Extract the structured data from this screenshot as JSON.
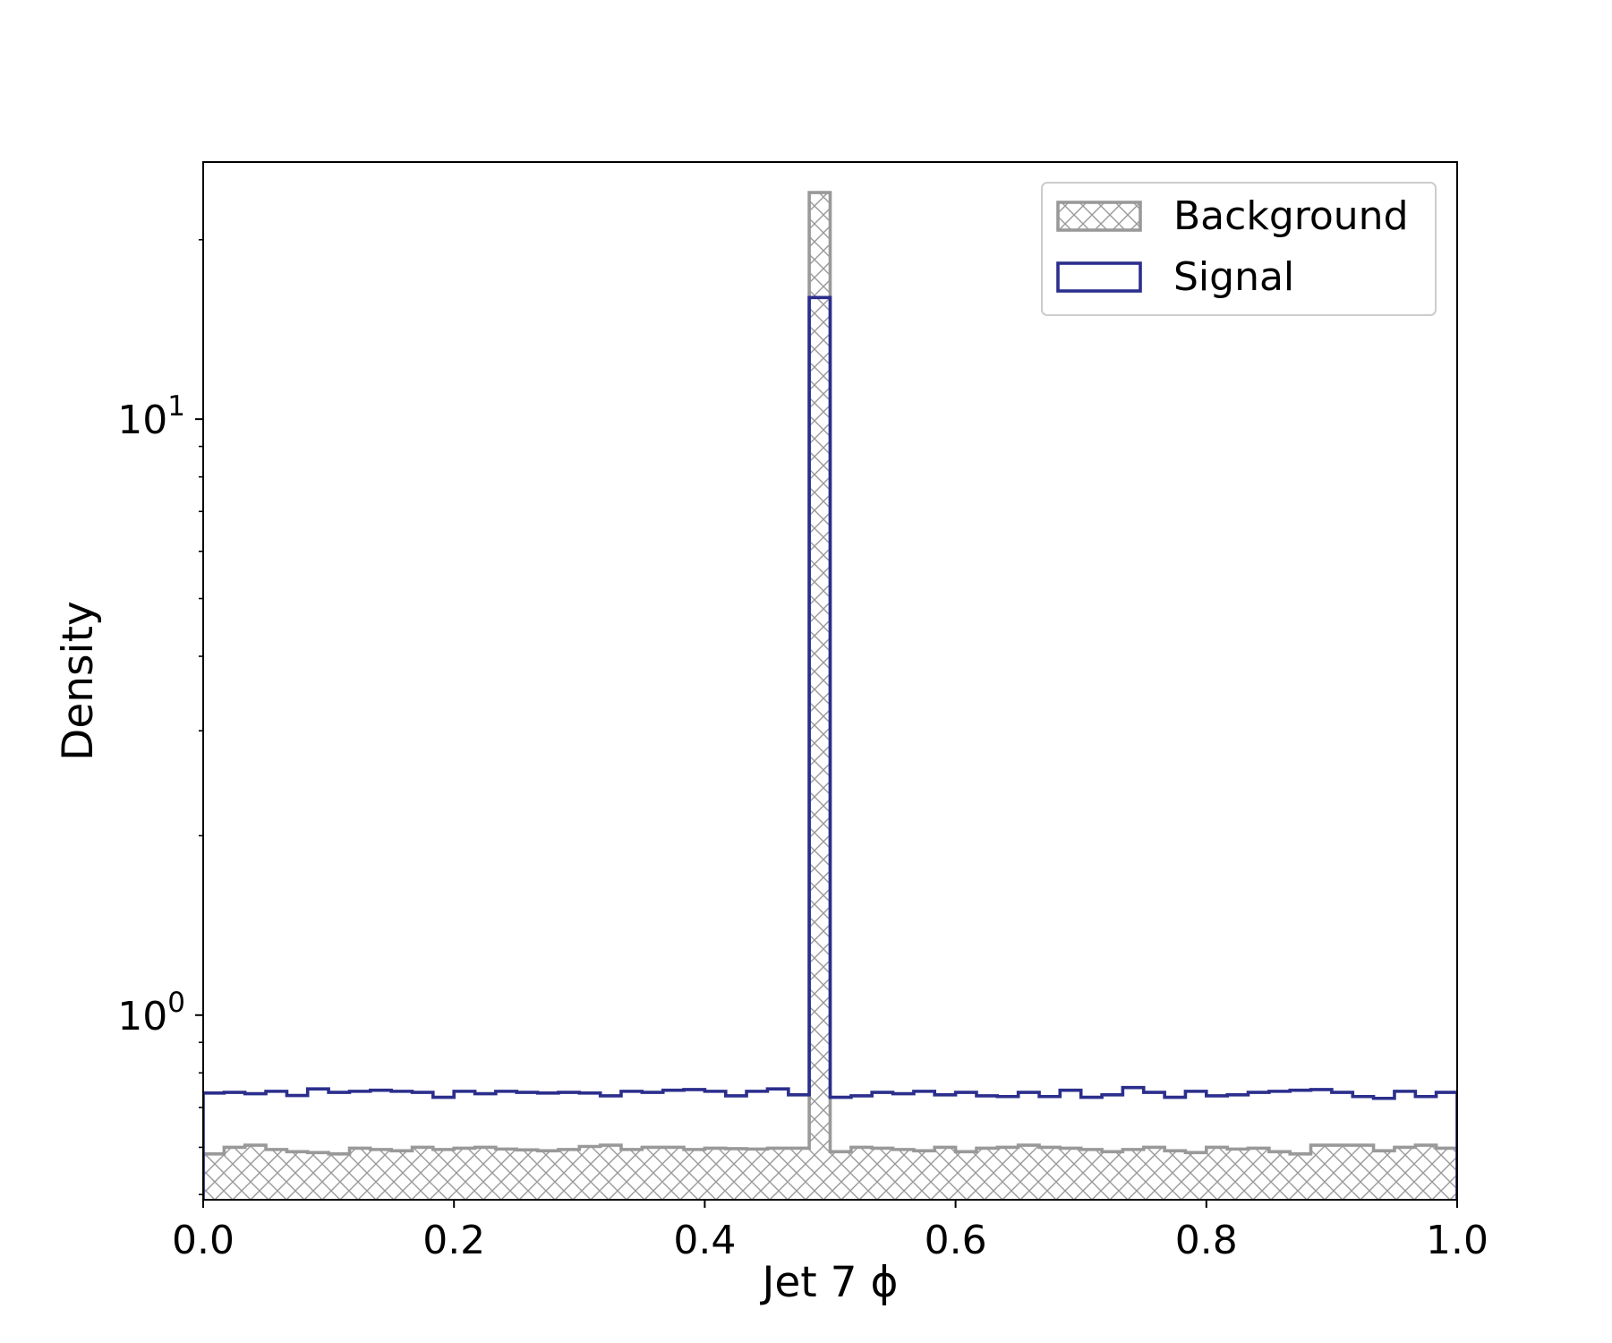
{
  "chart_data": {
    "type": "histogram",
    "xlabel": "Jet 7 ϕ",
    "ylabel": "Density",
    "xlim": [
      0.0,
      1.0
    ],
    "ylim": [
      0.49,
      27.0
    ],
    "yscale": "log",
    "x_ticks": [
      0.0,
      0.2,
      0.4,
      0.6,
      0.8,
      1.0
    ],
    "x_tick_labels": [
      "0.0",
      "0.2",
      "0.4",
      "0.6",
      "0.8",
      "1.0"
    ],
    "y_ticks": [
      {
        "value": 1,
        "base": "10",
        "exp": "0"
      },
      {
        "value": 10,
        "base": "10",
        "exp": "1"
      }
    ],
    "y_minor_ticks": [
      0.5,
      0.6,
      0.7,
      0.8,
      0.9,
      2,
      3,
      4,
      5,
      6,
      7,
      8,
      9,
      20
    ],
    "legend": {
      "location": "upper right"
    },
    "series": [
      {
        "name": "Background",
        "style": "hatched-step-filled",
        "color": "#999999",
        "bins": [
          0.0,
          0.0167,
          0.0333,
          0.05,
          0.0667,
          0.0833,
          0.1,
          0.1167,
          0.1333,
          0.15,
          0.1667,
          0.1833,
          0.2,
          0.2167,
          0.2333,
          0.25,
          0.2667,
          0.2833,
          0.3,
          0.3167,
          0.3333,
          0.35,
          0.3667,
          0.3833,
          0.4,
          0.4167,
          0.4333,
          0.45,
          0.4667,
          0.4833,
          0.5,
          0.5167,
          0.5333,
          0.55,
          0.5667,
          0.5833,
          0.6,
          0.6167,
          0.6333,
          0.65,
          0.6667,
          0.6833,
          0.7,
          0.7167,
          0.7333,
          0.75,
          0.7667,
          0.7833,
          0.8,
          0.8167,
          0.8333,
          0.85,
          0.8667,
          0.8833,
          0.9,
          0.9167,
          0.9333,
          0.95,
          0.9667,
          0.9833,
          1.0
        ],
        "values": [
          0.585,
          0.6,
          0.605,
          0.595,
          0.59,
          0.588,
          0.585,
          0.598,
          0.595,
          0.592,
          0.6,
          0.595,
          0.598,
          0.6,
          0.596,
          0.594,
          0.592,
          0.595,
          0.602,
          0.605,
          0.595,
          0.6,
          0.6,
          0.595,
          0.598,
          0.597,
          0.596,
          0.598,
          0.598,
          24.0,
          0.59,
          0.6,
          0.598,
          0.595,
          0.592,
          0.6,
          0.59,
          0.598,
          0.6,
          0.605,
          0.6,
          0.598,
          0.595,
          0.59,
          0.595,
          0.6,
          0.592,
          0.588,
          0.6,
          0.596,
          0.598,
          0.59,
          0.585,
          0.605,
          0.605,
          0.605,
          0.592,
          0.6,
          0.605,
          0.598
        ]
      },
      {
        "name": "Signal",
        "style": "step",
        "color": "#2b2e8c",
        "bins": [
          0.0,
          0.0167,
          0.0333,
          0.05,
          0.0667,
          0.0833,
          0.1,
          0.1167,
          0.1333,
          0.15,
          0.1667,
          0.1833,
          0.2,
          0.2167,
          0.2333,
          0.25,
          0.2667,
          0.2833,
          0.3,
          0.3167,
          0.3333,
          0.35,
          0.3667,
          0.3833,
          0.4,
          0.4167,
          0.4333,
          0.45,
          0.4667,
          0.4833,
          0.5,
          0.5167,
          0.5333,
          0.55,
          0.5667,
          0.5833,
          0.6,
          0.6167,
          0.6333,
          0.65,
          0.6667,
          0.6833,
          0.7,
          0.7167,
          0.7333,
          0.75,
          0.7667,
          0.7833,
          0.8,
          0.8167,
          0.8333,
          0.85,
          0.8667,
          0.8833,
          0.9,
          0.9167,
          0.9333,
          0.95,
          0.9667,
          0.9833,
          1.0
        ],
        "values": [
          0.74,
          0.742,
          0.738,
          0.745,
          0.733,
          0.752,
          0.742,
          0.745,
          0.748,
          0.745,
          0.742,
          0.728,
          0.745,
          0.738,
          0.745,
          0.742,
          0.74,
          0.742,
          0.74,
          0.732,
          0.745,
          0.742,
          0.748,
          0.75,
          0.745,
          0.732,
          0.745,
          0.752,
          0.735,
          16.0,
          0.728,
          0.732,
          0.742,
          0.738,
          0.745,
          0.735,
          0.742,
          0.732,
          0.73,
          0.742,
          0.73,
          0.748,
          0.728,
          0.735,
          0.756,
          0.742,
          0.728,
          0.745,
          0.732,
          0.735,
          0.742,
          0.745,
          0.748,
          0.75,
          0.742,
          0.73,
          0.725,
          0.745,
          0.73,
          0.742
        ]
      }
    ]
  }
}
